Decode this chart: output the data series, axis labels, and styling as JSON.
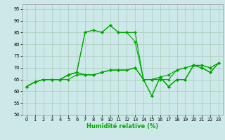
{
  "xlabel": "Humidité relative (%)",
  "bg_color": "#cce8e8",
  "grid_color": "#aaccbb",
  "line_color": "#00aa00",
  "xlim": [
    -0.5,
    23.5
  ],
  "ylim": [
    50,
    97
  ],
  "yticks": [
    50,
    55,
    60,
    65,
    70,
    75,
    80,
    85,
    90,
    95
  ],
  "xticks": [
    0,
    1,
    2,
    3,
    4,
    5,
    6,
    7,
    8,
    9,
    10,
    11,
    12,
    13,
    14,
    15,
    16,
    17,
    18,
    19,
    20,
    21,
    22,
    23
  ],
  "series": [
    [
      62,
      64,
      65,
      65,
      65,
      65,
      67,
      67,
      67,
      68,
      69,
      69,
      69,
      70,
      65,
      65,
      65,
      65,
      69,
      70,
      71,
      71,
      70,
      72
    ],
    [
      62,
      64,
      65,
      65,
      65,
      67,
      68,
      67,
      67,
      68,
      69,
      69,
      69,
      70,
      65,
      65,
      66,
      67,
      69,
      70,
      71,
      71,
      70,
      72
    ],
    [
      62,
      64,
      65,
      65,
      65,
      67,
      68,
      67,
      67,
      68,
      69,
      69,
      69,
      70,
      65,
      58,
      66,
      62,
      65,
      65,
      71,
      70,
      68,
      72
    ],
    [
      62,
      64,
      65,
      65,
      65,
      67,
      68,
      85,
      86,
      85,
      88,
      85,
      85,
      81,
      65,
      58,
      66,
      62,
      65,
      65,
      71,
      70,
      68,
      72
    ],
    [
      62,
      64,
      65,
      65,
      65,
      67,
      68,
      85,
      86,
      85,
      88,
      85,
      85,
      85,
      65,
      65,
      66,
      62,
      65,
      65,
      71,
      70,
      68,
      72
    ]
  ],
  "xlabel_fontsize": 6.0,
  "tick_fontsize": 4.8,
  "marker_size": 2.0,
  "line_width": 0.8
}
